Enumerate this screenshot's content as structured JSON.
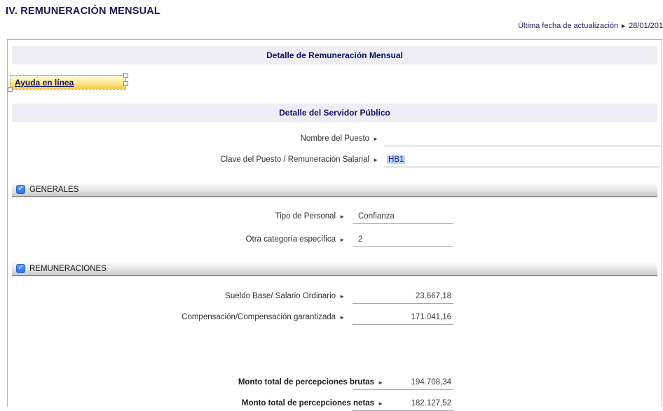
{
  "glyphs": {
    "arrow": "►",
    "check": "✓"
  },
  "colors": {
    "navy": "#14145e",
    "header_bar_bg": "#ededf3",
    "checkbox_blue": "#3478f6",
    "selection_highlight": "#b4d5f8",
    "help_yellow": "#f6c84f"
  },
  "header": {
    "page_title": "IV. REMUNERACIÓN MENSUAL",
    "last_update_label": "Última fecha de actualización",
    "last_update_value": "28/01/201"
  },
  "panel": {
    "main_header": "Detalle de Remuneración Mensual",
    "help_link_label": "Ayuda en línea",
    "servidor_header": "Detalle del Servidor Público"
  },
  "sections": {
    "generales": "GENERALES",
    "remuneraciones": "REMUNERACIONES"
  },
  "fields": {
    "nombre_puesto": {
      "label": "Nombre del Puesto",
      "value": ""
    },
    "clave_puesto": {
      "label": "Clave del Puesto / Remuneración Salarial",
      "value": "HB1"
    },
    "tipo_personal": {
      "label": "Tipo de Personal",
      "value": "Confianza"
    },
    "otra_categoria": {
      "label": "Otra categoría específica",
      "value": "2"
    },
    "sueldo_base": {
      "label": "Sueldo Base/ Salario Ordinario",
      "value": "23.667,18"
    },
    "compensacion": {
      "label": "Compensación/Compensación garantizada",
      "value": "171.041,16"
    },
    "monto_brutas": {
      "label": "Monto total de percepciones brutas",
      "value": "194.708,34"
    },
    "monto_netas": {
      "label": "Monto total de percepciones netas",
      "value": "182.127,52"
    }
  }
}
